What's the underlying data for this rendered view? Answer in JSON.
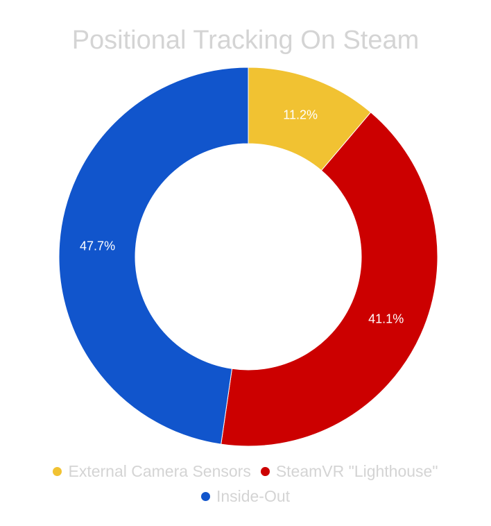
{
  "chart_data": {
    "type": "pie",
    "title": "Positional Tracking On Steam",
    "donut": true,
    "categories": [
      "External Camera Sensors",
      "SteamVR \"Lighthouse\"",
      "Inside-Out"
    ],
    "values": [
      11.2,
      41.1,
      47.7
    ],
    "value_labels": [
      "11.2%",
      "41.1%",
      "47.7%"
    ],
    "colors": [
      "#f1c232",
      "#cc0000",
      "#1155cc"
    ],
    "legend_position": "bottom"
  }
}
